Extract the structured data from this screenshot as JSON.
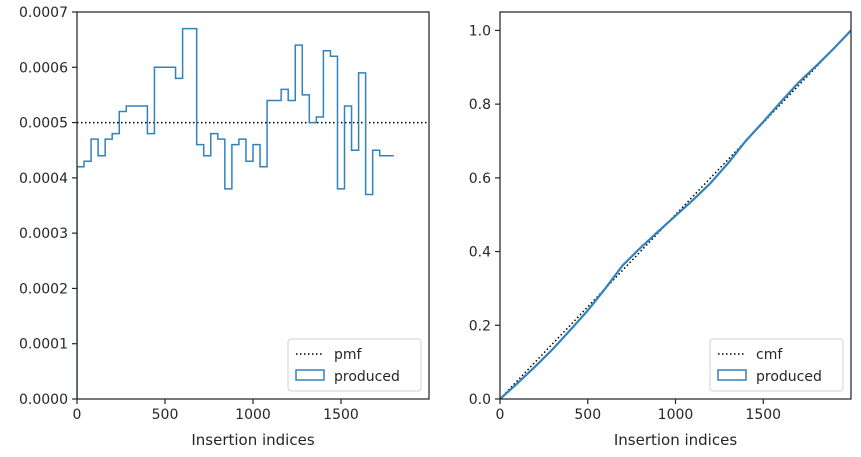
{
  "chart_data": [
    {
      "type": "step",
      "xlabel": "Insertion indices",
      "ylabel": "",
      "xlim": [
        0,
        2000
      ],
      "ylim": [
        0,
        0.0007
      ],
      "xticks": [
        0,
        500,
        1000,
        1500
      ],
      "xtick_labels": [
        "0",
        "500",
        "1000",
        "1500"
      ],
      "yticks": [
        0,
        0.0001,
        0.0002,
        0.0003,
        0.0004,
        0.0005,
        0.0006,
        0.0007
      ],
      "ytick_labels": [
        "0.0000",
        "0.0001",
        "0.0002",
        "0.0003",
        "0.0004",
        "0.0005",
        "0.0006",
        "0.0007"
      ],
      "legend_position": "bottom-right",
      "legend": [
        "pmf",
        "produced"
      ],
      "bin_width": 40,
      "series": [
        {
          "name": "pmf",
          "style": "dotted",
          "color": "#000000",
          "constant": 0.0005
        },
        {
          "name": "produced",
          "style": "step",
          "color": "#3182bd",
          "values": [
            0.00042,
            0.00043,
            0.00047,
            0.00044,
            0.00047,
            0.00048,
            0.00052,
            0.00053,
            0.00053,
            0.00053,
            0.00048,
            0.0006,
            0.0006,
            0.0006,
            0.00058,
            0.00067,
            0.00067,
            0.00046,
            0.00044,
            0.00048,
            0.00047,
            0.00038,
            0.00046,
            0.00047,
            0.00043,
            0.00046,
            0.00042,
            0.00054,
            0.00054,
            0.00056,
            0.00054,
            0.00064,
            0.00055,
            0.0005,
            0.00051,
            0.00063,
            0.00062,
            0.00038,
            0.00053,
            0.00045,
            0.00059,
            0.00037,
            0.00045,
            0.00044,
            0.00044
          ]
        }
      ]
    },
    {
      "type": "line",
      "xlabel": "Insertion indices",
      "ylabel": "",
      "xlim": [
        0,
        2000
      ],
      "ylim": [
        0,
        1.05
      ],
      "xticks": [
        0,
        500,
        1000,
        1500
      ],
      "xtick_labels": [
        "0",
        "500",
        "1000",
        "1500"
      ],
      "yticks": [
        0.0,
        0.2,
        0.4,
        0.6,
        0.8,
        1.0
      ],
      "ytick_labels": [
        "0.0",
        "0.2",
        "0.4",
        "0.6",
        "0.8",
        "1.0"
      ],
      "legend_position": "bottom-right",
      "legend": [
        "cmf",
        "produced"
      ],
      "series": [
        {
          "name": "cmf",
          "style": "dotted",
          "color": "#000000",
          "x": [
            0,
            2000
          ],
          "y": [
            0,
            1.0
          ]
        },
        {
          "name": "produced",
          "style": "solid",
          "color": "#3182bd",
          "x": [
            0,
            100,
            200,
            300,
            400,
            500,
            600,
            700,
            800,
            900,
            1000,
            1100,
            1200,
            1300,
            1400,
            1500,
            1600,
            1700,
            1800,
            1900,
            2000
          ],
          "y": [
            0,
            0.043,
            0.088,
            0.135,
            0.187,
            0.24,
            0.3,
            0.363,
            0.41,
            0.454,
            0.497,
            0.54,
            0.586,
            0.64,
            0.7,
            0.752,
            0.806,
            0.858,
            0.903,
            0.95,
            1.0
          ]
        }
      ]
    }
  ]
}
